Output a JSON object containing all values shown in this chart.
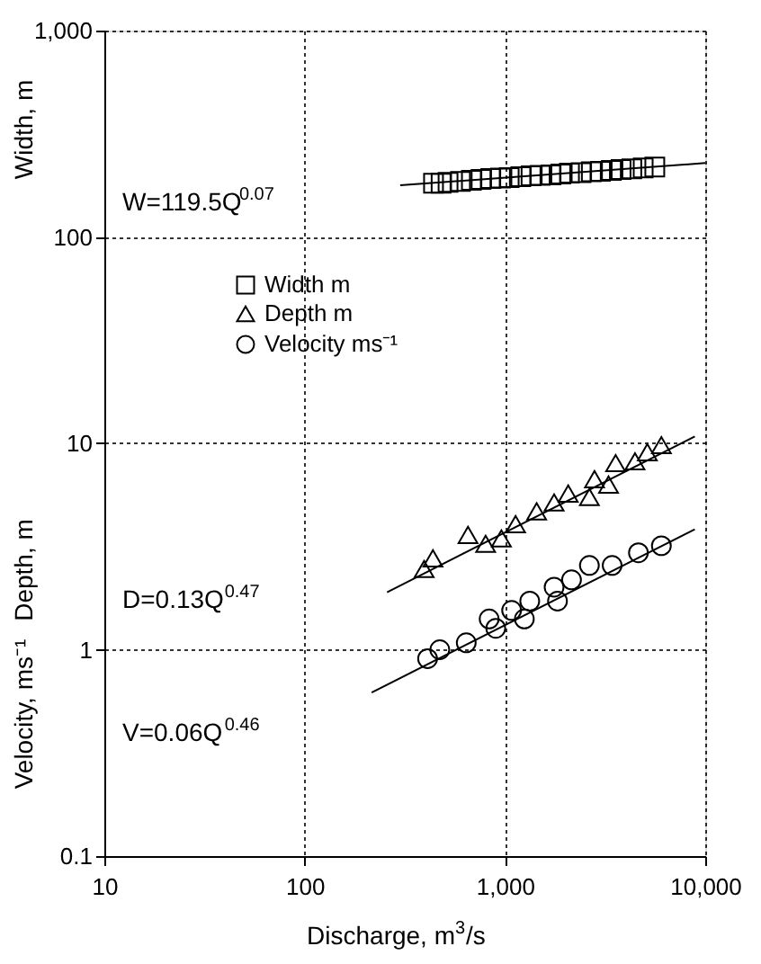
{
  "chart_data": {
    "type": "scatter",
    "xlabel": "Discharge, m$^{3}$/s",
    "ylabel": "Width, m",
    "xlim": [
      10,
      10000
    ],
    "ylim": [
      0.1,
      1000
    ],
    "xticks": [
      10,
      100,
      {
        "value": 1000,
        "label": "1,000"
      },
      {
        "value": 10000,
        "label": "10,000"
      }
    ],
    "yticks": [
      0.1,
      1,
      10,
      100,
      {
        "value": 1000,
        "label": "1,000"
      }
    ],
    "log": "xy",
    "grid": true,
    "legend": "top left",
    "series": [
      {
        "name": "Width m",
        "marker": "square",
        "color": "#000000",
        "x": [
          440,
          480,
          520,
          600,
          680,
          760,
          850,
          950,
          1050,
          1200,
          1350,
          1500,
          1700,
          1900,
          2100,
          2400,
          2700,
          3000,
          3400,
          3800,
          4300,
          4900,
          5600
        ],
        "values": [
          182,
          182,
          184,
          186,
          188,
          190,
          192,
          193,
          194,
          196,
          198,
          199,
          200,
          202,
          204,
          205,
          207,
          208,
          210,
          212,
          214,
          216,
          218
        ]
      },
      {
        "name": "Depth m",
        "marker": "triangle",
        "color": "#000000",
        "x": [
          395,
          437,
          654,
          801,
          960,
          1130,
          1440,
          1760,
          2070,
          2640,
          2800,
          3290,
          3570,
          4460,
          5140,
          6040
        ],
        "values": [
          2.46,
          2.77,
          3.6,
          3.26,
          3.46,
          4.06,
          4.68,
          5.17,
          5.71,
          5.49,
          6.7,
          6.31,
          8.02,
          8.18,
          9.05,
          9.8
        ]
      },
      {
        "name": "Velocity ms⁻¹",
        "marker": "circle",
        "color": "#000000",
        "x": [
          411,
          473,
          641,
          834,
          900,
          1080,
          1250,
          1330,
          1760,
          1830,
          2150,
          2640,
          3430,
          4640,
          6040
        ],
        "values": [
          0.905,
          1.0,
          1.08,
          1.41,
          1.27,
          1.55,
          1.41,
          1.72,
          2.01,
          1.72,
          2.18,
          2.56,
          2.56,
          2.95,
          3.19
        ]
      },
      {
        "type": "line",
        "color": "#000000",
        "x": [
          300,
          10000
        ],
        "values": [
          178,
          228
        ]
      },
      {
        "type": "line",
        "color": "#000000",
        "x": [
          258,
          8870
        ],
        "values": [
          1.9,
          10.8
        ]
      },
      {
        "type": "line",
        "color": "#000000",
        "x": [
          216,
          8870
        ],
        "values": [
          0.62,
          3.83
        ]
      }
    ],
    "annotations": [
      "W=119.5Q$^{0.07}$",
      "D=0.13Q$^{0.47}$",
      "V=0.06Q$^{0.46}$",
      "Depth, m",
      "Velocity, ms⁻¹"
    ]
  }
}
